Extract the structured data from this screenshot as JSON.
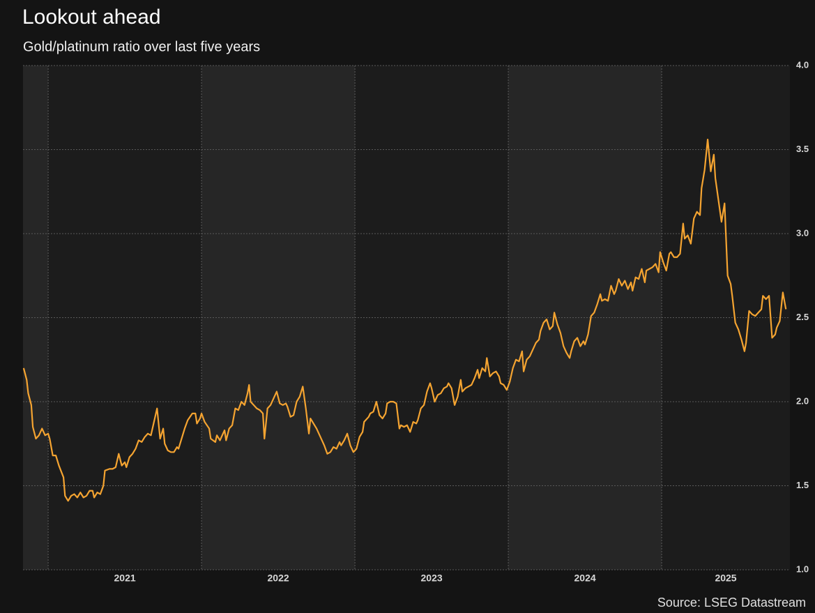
{
  "chart_data": {
    "type": "line",
    "title": "Lookout ahead",
    "subtitle": "Gold/platinum ratio over last five years",
    "source": "Source: LSEG Datastream",
    "color": "#f5a431",
    "grid": true,
    "xlim": [
      2020.836,
      2025.836
    ],
    "xticks": [
      2021,
      2022,
      2023,
      2024,
      2025
    ],
    "ylim": [
      1,
      4
    ],
    "yticks": [
      {
        "value": 1,
        "label": "1.0"
      },
      1.5,
      {
        "value": 2,
        "label": "2.0"
      },
      2.5,
      {
        "value": 3,
        "label": "3.0"
      },
      3.5,
      {
        "value": 4,
        "label": "4.0"
      }
    ],
    "x": [
      2020.84,
      2020.86,
      2020.87,
      2020.89,
      2020.9,
      2020.92,
      2020.94,
      2020.96,
      2020.98,
      2021.0,
      2021.01,
      2021.03,
      2021.05,
      2021.07,
      2021.1,
      2021.11,
      2021.13,
      2021.15,
      2021.17,
      2021.19,
      2021.21,
      2021.23,
      2021.25,
      2021.27,
      2021.29,
      2021.3,
      2021.32,
      2021.34,
      2021.36,
      2021.37,
      2021.4,
      2021.42,
      2021.44,
      2021.46,
      2021.48,
      2021.5,
      2021.51,
      2021.53,
      2021.55,
      2021.57,
      2021.59,
      2021.61,
      2021.63,
      2021.65,
      2021.67,
      2021.69,
      2021.71,
      2021.73,
      2021.75,
      2021.76,
      2021.78,
      2021.8,
      2021.82,
      2021.84,
      2021.85,
      2021.87,
      2021.89,
      2021.91,
      2021.94,
      2021.96,
      2021.97,
      2021.99,
      2022.0,
      2022.02,
      2022.05,
      2022.06,
      2022.09,
      2022.1,
      2022.12,
      2022.15,
      2022.16,
      2022.18,
      2022.2,
      2022.22,
      2022.24,
      2022.26,
      2022.28,
      2022.3,
      2022.31,
      2022.32,
      2022.34,
      2022.36,
      2022.38,
      2022.4,
      2022.41,
      2022.43,
      2022.45,
      2022.47,
      2022.49,
      2022.51,
      2022.53,
      2022.55,
      2022.56,
      2022.58,
      2022.6,
      2022.62,
      2022.64,
      2022.66,
      2022.68,
      2022.7,
      2022.71,
      2022.73,
      2022.75,
      2022.77,
      2022.79,
      2022.8,
      2022.82,
      2022.84,
      2022.86,
      2022.88,
      2022.9,
      2022.91,
      2022.93,
      2022.95,
      2022.97,
      2022.99,
      2023.01,
      2023.03,
      2023.05,
      2023.06,
      2023.09,
      2023.1,
      2023.12,
      2023.14,
      2023.16,
      2023.18,
      2023.2,
      2023.21,
      2023.23,
      2023.25,
      2023.27,
      2023.29,
      2023.3,
      2023.32,
      2023.34,
      2023.36,
      2023.38,
      2023.4,
      2023.41,
      2023.43,
      2023.45,
      2023.47,
      2023.49,
      2023.5,
      2023.52,
      2023.54,
      2023.56,
      2023.58,
      2023.6,
      2023.61,
      2023.63,
      2023.65,
      2023.67,
      2023.69,
      2023.7,
      2023.72,
      2023.74,
      2023.76,
      2023.78,
      2023.8,
      2023.81,
      2023.83,
      2023.85,
      2023.86,
      2023.88,
      2023.9,
      2023.92,
      2023.94,
      2023.95,
      2023.97,
      2023.99,
      2024.01,
      2024.03,
      2024.05,
      2024.07,
      2024.09,
      2024.1,
      2024.12,
      2024.14,
      2024.16,
      2024.18,
      2024.2,
      2024.21,
      2024.23,
      2024.25,
      2024.27,
      2024.29,
      2024.3,
      2024.32,
      2024.34,
      2024.36,
      2024.38,
      2024.4,
      2024.41,
      2024.43,
      2024.45,
      2024.47,
      2024.49,
      2024.5,
      2024.52,
      2024.54,
      2024.56,
      2024.58,
      2024.6,
      2024.61,
      2024.63,
      2024.65,
      2024.67,
      2024.69,
      2024.7,
      2024.72,
      2024.74,
      2024.76,
      2024.78,
      2024.8,
      2024.81,
      2024.83,
      2024.85,
      2024.87,
      2024.89,
      2024.9,
      2024.92,
      2024.94,
      2024.96,
      2024.98,
      2024.99,
      2025.01,
      2025.03,
      2025.05,
      2025.06,
      2025.08,
      2025.1,
      2025.12,
      2025.14,
      2025.15,
      2025.17,
      2025.19,
      2025.21,
      2025.23,
      2025.25,
      2025.26,
      2025.28,
      2025.3,
      2025.32,
      2025.34,
      2025.35,
      2025.37,
      2025.39,
      2025.41,
      2025.43,
      2025.45,
      2025.46,
      2025.48,
      2025.5,
      2025.52,
      2025.54,
      2025.55,
      2025.57,
      2025.59,
      2025.61,
      2025.63,
      2025.65,
      2025.66,
      2025.68,
      2025.7,
      2025.72,
      2025.74,
      2025.75,
      2025.77,
      2025.79,
      2025.81
    ],
    "values": [
      2.2,
      2.13,
      2.05,
      1.98,
      1.85,
      1.78,
      1.8,
      1.84,
      1.8,
      1.81,
      1.78,
      1.68,
      1.68,
      1.62,
      1.55,
      1.44,
      1.41,
      1.44,
      1.45,
      1.43,
      1.46,
      1.43,
      1.44,
      1.47,
      1.47,
      1.43,
      1.46,
      1.45,
      1.5,
      1.59,
      1.6,
      1.6,
      1.61,
      1.69,
      1.62,
      1.64,
      1.61,
      1.67,
      1.69,
      1.72,
      1.77,
      1.76,
      1.79,
      1.81,
      1.8,
      1.88,
      1.96,
      1.78,
      1.84,
      1.75,
      1.71,
      1.7,
      1.7,
      1.73,
      1.72,
      1.78,
      1.84,
      1.89,
      1.93,
      1.93,
      1.87,
      1.9,
      1.93,
      1.88,
      1.84,
      1.78,
      1.76,
      1.8,
      1.77,
      1.83,
      1.77,
      1.84,
      1.86,
      1.96,
      1.95,
      2.0,
      1.98,
      2.05,
      2.1,
      2.0,
      1.98,
      1.96,
      1.95,
      1.93,
      1.78,
      1.96,
      1.98,
      2.02,
      2.06,
      1.99,
      1.98,
      1.99,
      1.97,
      1.91,
      1.92,
      2.0,
      2.03,
      2.09,
      1.96,
      1.81,
      1.9,
      1.87,
      1.84,
      1.8,
      1.76,
      1.74,
      1.69,
      1.7,
      1.73,
      1.72,
      1.76,
      1.74,
      1.77,
      1.81,
      1.74,
      1.7,
      1.72,
      1.79,
      1.82,
      1.88,
      1.91,
      1.93,
      1.94,
      2.0,
      1.92,
      1.9,
      1.93,
      1.99,
      2.0,
      2.0,
      1.99,
      1.84,
      1.86,
      1.85,
      1.86,
      1.82,
      1.88,
      1.87,
      1.89,
      1.96,
      1.98,
      2.06,
      2.11,
      2.08,
      2.0,
      2.04,
      2.05,
      2.08,
      2.09,
      2.11,
      2.08,
      1.98,
      2.03,
      2.13,
      2.06,
      2.08,
      2.09,
      2.1,
      2.14,
      2.19,
      2.14,
      2.2,
      2.18,
      2.26,
      2.15,
      2.17,
      2.18,
      2.15,
      2.11,
      2.1,
      2.07,
      2.12,
      2.2,
      2.25,
      2.24,
      2.3,
      2.18,
      2.25,
      2.27,
      2.31,
      2.35,
      2.37,
      2.42,
      2.47,
      2.49,
      2.43,
      2.45,
      2.53,
      2.46,
      2.41,
      2.33,
      2.29,
      2.26,
      2.3,
      2.36,
      2.38,
      2.33,
      2.36,
      2.34,
      2.4,
      2.51,
      2.53,
      2.58,
      2.64,
      2.6,
      2.61,
      2.6,
      2.69,
      2.64,
      2.66,
      2.73,
      2.69,
      2.72,
      2.67,
      2.71,
      2.66,
      2.74,
      2.73,
      2.79,
      2.71,
      2.78,
      2.79,
      2.8,
      2.82,
      2.77,
      2.89,
      2.83,
      2.78,
      2.88,
      2.89,
      2.86,
      2.86,
      2.88,
      3.06,
      2.97,
      2.99,
      2.94,
      3.09,
      3.13,
      3.11,
      3.27,
      3.38,
      3.56,
      3.37,
      3.47,
      3.33,
      3.2,
      3.07,
      3.18,
      2.75,
      2.7,
      2.63,
      2.47,
      2.43,
      2.37,
      2.3,
      2.35,
      2.54,
      2.52,
      2.51,
      2.53,
      2.55,
      2.63,
      2.61,
      2.63,
      2.38,
      2.4,
      2.44,
      2.48,
      2.65,
      2.55
    ]
  }
}
